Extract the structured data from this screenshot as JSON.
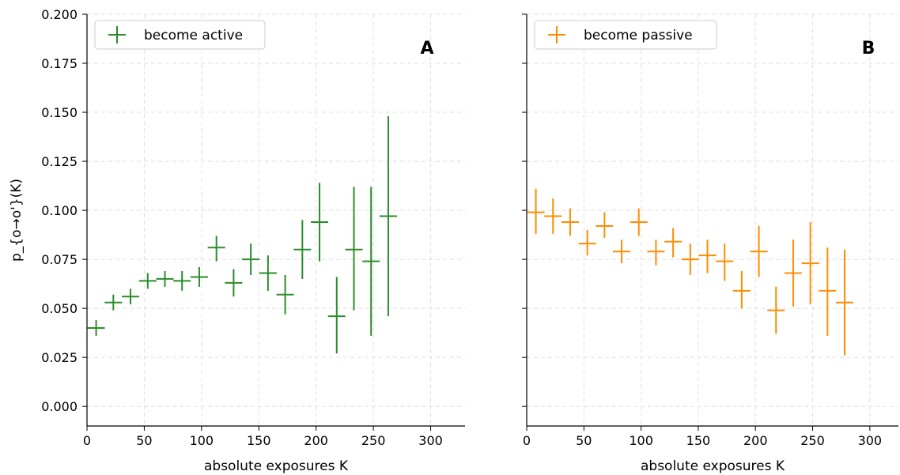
{
  "chart_data": [
    {
      "type": "scatter",
      "panel_label": "A",
      "xlabel": "absolute exposures K",
      "ylabel": "p_{o→o'}(K)",
      "xlim": [
        0,
        330
      ],
      "ylim": [
        -0.01,
        0.2
      ],
      "xticks": [
        0,
        50,
        100,
        150,
        200,
        250,
        300
      ],
      "yticks": [
        0.0,
        0.025,
        0.05,
        0.075,
        0.1,
        0.125,
        0.15,
        0.175,
        0.2
      ],
      "ytick_labels": [
        "0.000",
        "0.025",
        "0.050",
        "0.075",
        "0.100",
        "0.125",
        "0.150",
        "0.175",
        "0.200"
      ],
      "xtick_labels": [
        "0",
        "50",
        "100",
        "150",
        "200",
        "250",
        "300"
      ],
      "grid": true,
      "legend_position": "top-left",
      "series": [
        {
          "name": "become active",
          "color": "#2a8c2a",
          "points": [
            {
              "x": 8,
              "y": 0.04,
              "yerr_low": 0.036,
              "yerr_high": 0.044
            },
            {
              "x": 23,
              "y": 0.053,
              "yerr_low": 0.049,
              "yerr_high": 0.057
            },
            {
              "x": 38,
              "y": 0.056,
              "yerr_low": 0.052,
              "yerr_high": 0.06
            },
            {
              "x": 53,
              "y": 0.064,
              "yerr_low": 0.06,
              "yerr_high": 0.068
            },
            {
              "x": 68,
              "y": 0.065,
              "yerr_low": 0.061,
              "yerr_high": 0.069
            },
            {
              "x": 83,
              "y": 0.064,
              "yerr_low": 0.059,
              "yerr_high": 0.069
            },
            {
              "x": 98,
              "y": 0.066,
              "yerr_low": 0.061,
              "yerr_high": 0.071
            },
            {
              "x": 113,
              "y": 0.081,
              "yerr_low": 0.074,
              "yerr_high": 0.087
            },
            {
              "x": 128,
              "y": 0.063,
              "yerr_low": 0.056,
              "yerr_high": 0.07
            },
            {
              "x": 143,
              "y": 0.075,
              "yerr_low": 0.067,
              "yerr_high": 0.083
            },
            {
              "x": 158,
              "y": 0.068,
              "yerr_low": 0.059,
              "yerr_high": 0.077
            },
            {
              "x": 173,
              "y": 0.057,
              "yerr_low": 0.047,
              "yerr_high": 0.067
            },
            {
              "x": 188,
              "y": 0.08,
              "yerr_low": 0.065,
              "yerr_high": 0.095
            },
            {
              "x": 203,
              "y": 0.094,
              "yerr_low": 0.074,
              "yerr_high": 0.114
            },
            {
              "x": 218,
              "y": 0.046,
              "yerr_low": 0.027,
              "yerr_high": 0.066
            },
            {
              "x": 233,
              "y": 0.08,
              "yerr_low": 0.049,
              "yerr_high": 0.112
            },
            {
              "x": 248,
              "y": 0.074,
              "yerr_low": 0.036,
              "yerr_high": 0.112
            },
            {
              "x": 263,
              "y": 0.097,
              "yerr_low": 0.046,
              "yerr_high": 0.148
            }
          ]
        }
      ]
    },
    {
      "type": "scatter",
      "panel_label": "B",
      "xlabel": "absolute exposures K",
      "ylabel": "",
      "xlim": [
        0,
        325
      ],
      "ylim": [
        -0.01,
        0.2
      ],
      "xticks": [
        0,
        50,
        100,
        150,
        200,
        250,
        300
      ],
      "xtick_labels": [
        "0",
        "50",
        "100",
        "150",
        "200",
        "250",
        "300"
      ],
      "yticks": [
        0.0,
        0.025,
        0.05,
        0.075,
        0.1,
        0.125,
        0.15,
        0.175,
        0.2
      ],
      "grid": true,
      "legend_position": "top-left",
      "series": [
        {
          "name": "become passive",
          "color": "#ff8c00",
          "points": [
            {
              "x": 8,
              "y": 0.099,
              "yerr_low": 0.088,
              "yerr_high": 0.111
            },
            {
              "x": 23,
              "y": 0.097,
              "yerr_low": 0.088,
              "yerr_high": 0.106
            },
            {
              "x": 38,
              "y": 0.094,
              "yerr_low": 0.087,
              "yerr_high": 0.101
            },
            {
              "x": 53,
              "y": 0.083,
              "yerr_low": 0.077,
              "yerr_high": 0.09
            },
            {
              "x": 68,
              "y": 0.092,
              "yerr_low": 0.086,
              "yerr_high": 0.099
            },
            {
              "x": 83,
              "y": 0.079,
              "yerr_low": 0.073,
              "yerr_high": 0.085
            },
            {
              "x": 98,
              "y": 0.094,
              "yerr_low": 0.087,
              "yerr_high": 0.101
            },
            {
              "x": 113,
              "y": 0.079,
              "yerr_low": 0.072,
              "yerr_high": 0.085
            },
            {
              "x": 128,
              "y": 0.084,
              "yerr_low": 0.076,
              "yerr_high": 0.091
            },
            {
              "x": 143,
              "y": 0.075,
              "yerr_low": 0.067,
              "yerr_high": 0.083
            },
            {
              "x": 158,
              "y": 0.077,
              "yerr_low": 0.068,
              "yerr_high": 0.085
            },
            {
              "x": 173,
              "y": 0.074,
              "yerr_low": 0.064,
              "yerr_high": 0.083
            },
            {
              "x": 188,
              "y": 0.059,
              "yerr_low": 0.05,
              "yerr_high": 0.069
            },
            {
              "x": 203,
              "y": 0.079,
              "yerr_low": 0.066,
              "yerr_high": 0.092
            },
            {
              "x": 218,
              "y": 0.049,
              "yerr_low": 0.037,
              "yerr_high": 0.061
            },
            {
              "x": 233,
              "y": 0.068,
              "yerr_low": 0.051,
              "yerr_high": 0.085
            },
            {
              "x": 248,
              "y": 0.073,
              "yerr_low": 0.052,
              "yerr_high": 0.094
            },
            {
              "x": 263,
              "y": 0.059,
              "yerr_low": 0.036,
              "yerr_high": 0.081
            },
            {
              "x": 278,
              "y": 0.053,
              "yerr_low": 0.026,
              "yerr_high": 0.08
            }
          ]
        }
      ]
    }
  ]
}
